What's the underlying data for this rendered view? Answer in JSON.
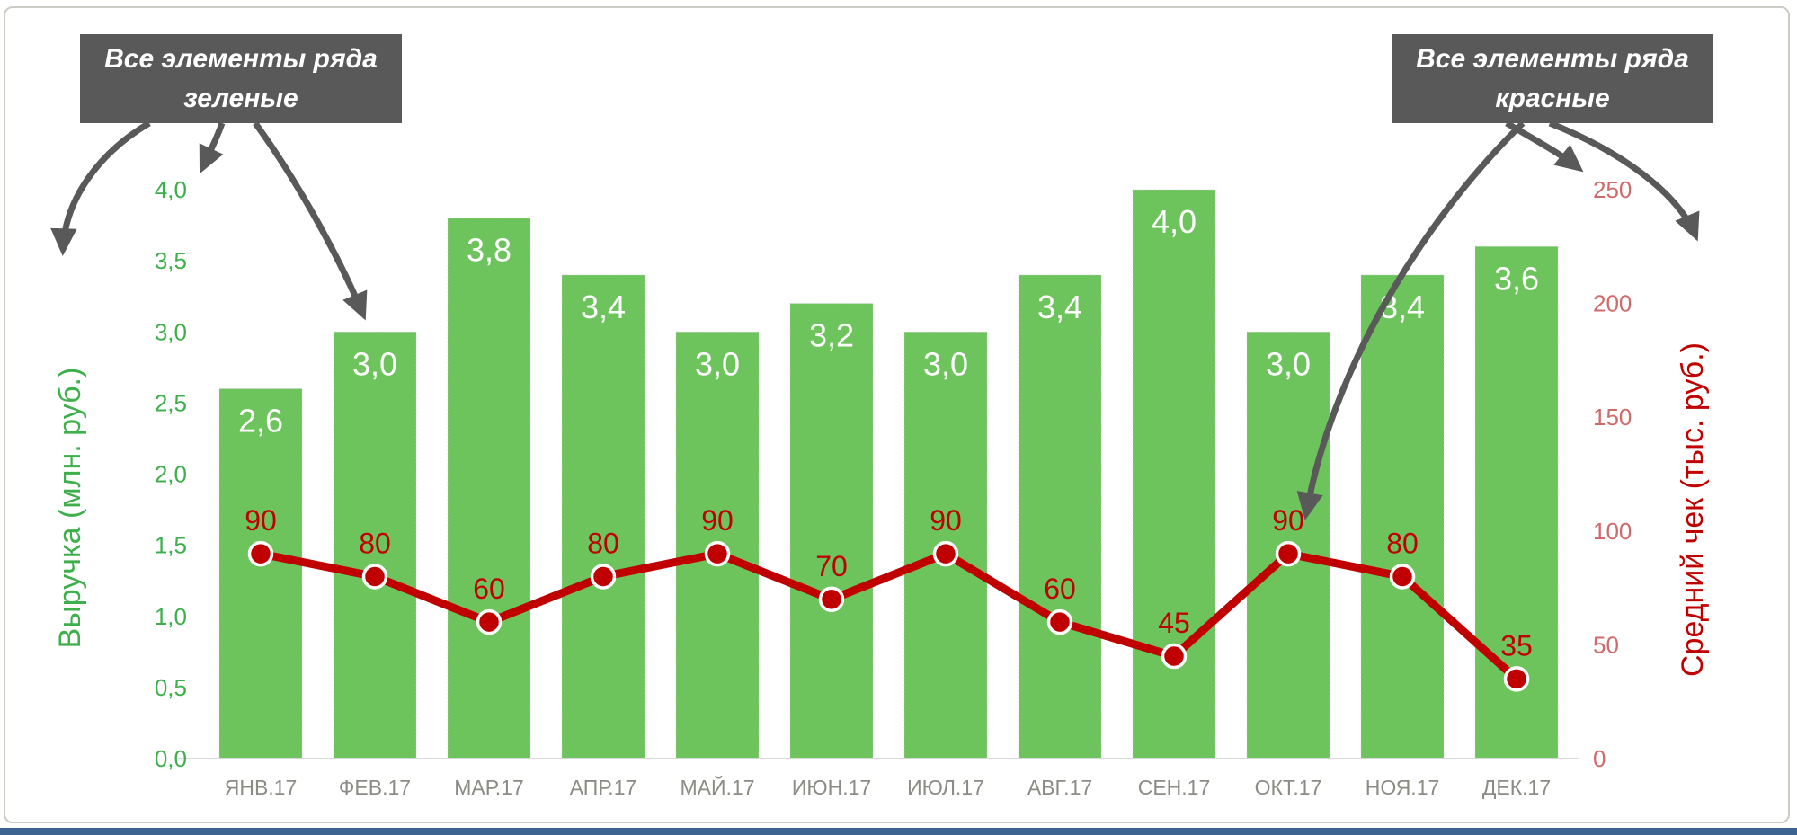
{
  "callouts": {
    "green": {
      "line1": "Все элементы ряда",
      "line2": "зеленые"
    },
    "red": {
      "line1": "Все элементы ряда",
      "line2": "красные"
    }
  },
  "chart_data": {
    "type": "combo-bar-line",
    "title": "",
    "categories": [
      "ЯНВ.17",
      "ФЕВ.17",
      "МАР.17",
      "АПР.17",
      "МАЙ.17",
      "ИЮН.17",
      "ИЮЛ.17",
      "АВГ.17",
      "СЕН.17",
      "ОКТ.17",
      "НОЯ.17",
      "ДЕК.17"
    ],
    "series": [
      {
        "name": "Выручка",
        "type": "bar",
        "axis": "left",
        "values": [
          2.6,
          3.0,
          3.8,
          3.4,
          3.0,
          3.2,
          3.0,
          3.4,
          4.0,
          3.0,
          3.4,
          3.6
        ],
        "labels": [
          "2,6",
          "3,0",
          "3,8",
          "3,4",
          "3,0",
          "3,2",
          "3,0",
          "3,4",
          "4,0",
          "3,0",
          "3,4",
          "3,6"
        ],
        "color": "#6ec45c",
        "label_color": "#ffffff"
      },
      {
        "name": "Средний чек",
        "type": "line",
        "axis": "right",
        "values": [
          90,
          80,
          60,
          80,
          90,
          70,
          90,
          60,
          45,
          90,
          80,
          35
        ],
        "labels": [
          "90",
          "80",
          "60",
          "80",
          "90",
          "70",
          "90",
          "60",
          "45",
          "90",
          "80",
          "35"
        ],
        "color": "#c00000",
        "marker_stroke": "#ffffff",
        "label_color": "#c00000"
      }
    ],
    "left_axis": {
      "title": "Выручка (млн. руб.)",
      "min": 0,
      "max": 4,
      "ticks": [
        "0,0",
        "0,5",
        "1,0",
        "1,5",
        "2,0",
        "2,5",
        "3,0",
        "3,5",
        "4,0"
      ],
      "color": "#3faf4c"
    },
    "right_axis": {
      "title": "Средний чек (тыс. руб.)",
      "min": 0,
      "max": 250,
      "ticks": [
        "0",
        "50",
        "100",
        "150",
        "200",
        "250"
      ],
      "color": "#c00000",
      "tick_color": "#d06a6a"
    },
    "x_axis": {
      "label_color": "#8c8c85",
      "line_color": "#d9d9d9"
    },
    "grid": false,
    "legend": "none"
  },
  "colors": {
    "arrow": "#595959",
    "callout_bg": "#595959",
    "callout_text": "#ffffff",
    "frame_border": "#ccccc4",
    "bottom_strip": "#3d6490"
  }
}
